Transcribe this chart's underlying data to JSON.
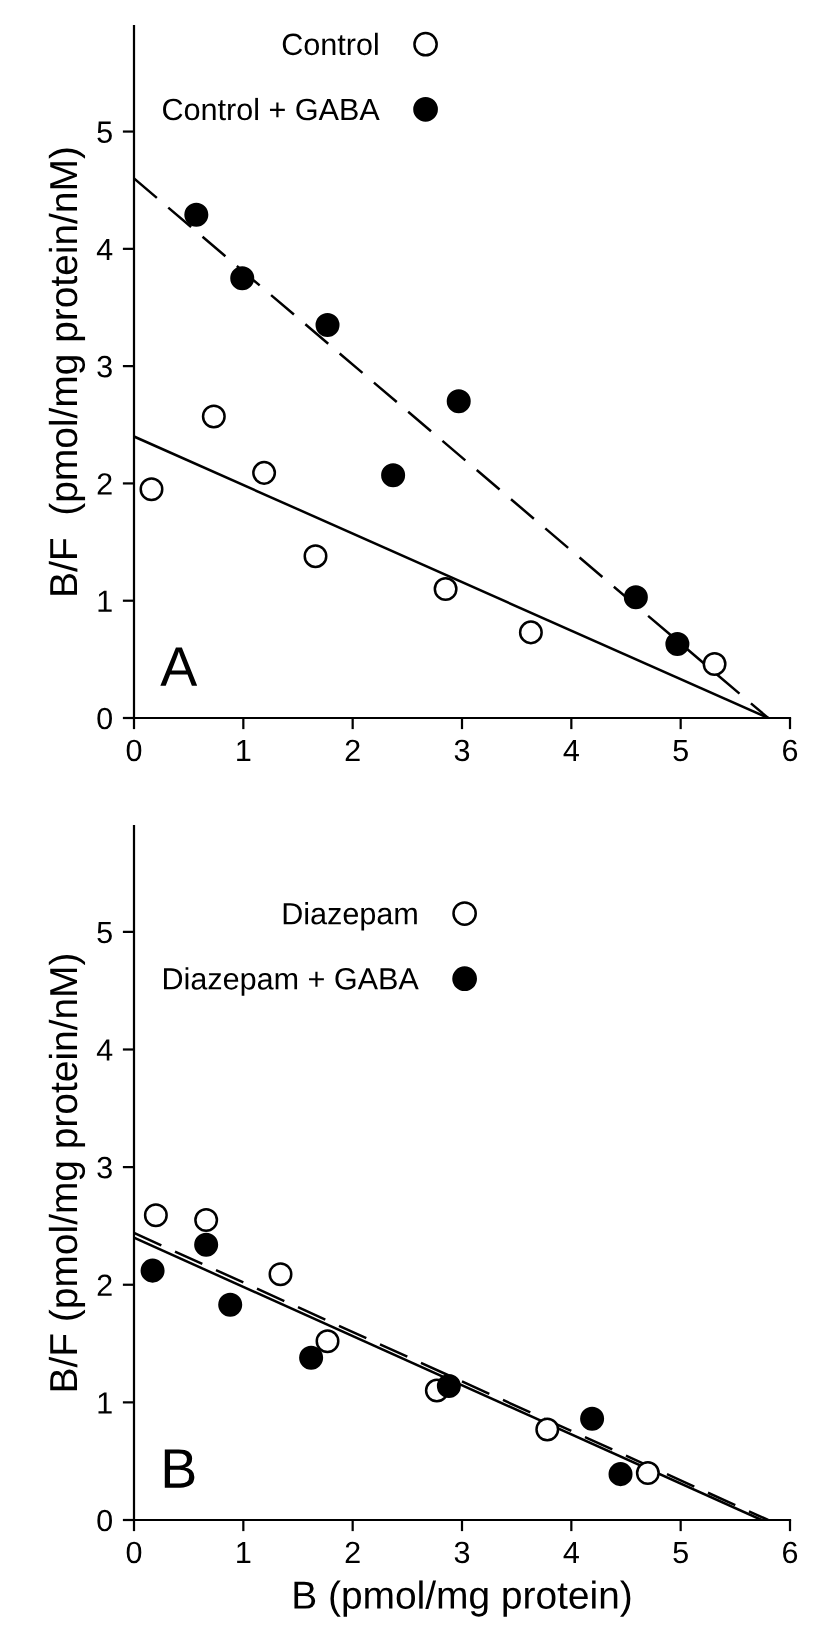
{
  "chart_data": [
    {
      "type": "scatter",
      "ylabel": "B/F  (pmol/mg protein/nM)",
      "xlim": [
        0,
        6
      ],
      "ylim": [
        0,
        5.9
      ],
      "xticks": [
        0,
        1,
        2,
        3,
        4,
        5,
        6
      ],
      "yticks": [
        0,
        1,
        2,
        3,
        4,
        5
      ],
      "grid": false,
      "legend": "top left",
      "marker": "circle",
      "annotations": [
        "A"
      ],
      "series": [
        {
          "name": "Control",
          "color": "#ffffff",
          "x": [
            0.16,
            0.73,
            1.19,
            1.66,
            2.85,
            3.63,
            5.31
          ],
          "values": [
            1.95,
            2.57,
            2.09,
            1.38,
            1.1,
            0.73,
            0.46
          ]
        },
        {
          "name": "Control + GABA",
          "color": "#000000",
          "x": [
            0.57,
            0.99,
            1.77,
            2.37,
            2.97,
            4.59,
            4.97
          ],
          "values": [
            4.29,
            3.75,
            3.35,
            2.07,
            2.7,
            1.03,
            0.63
          ]
        },
        {
          "type": "line",
          "color": "#000000",
          "line_style": "solid",
          "marker": "none",
          "x": [
            0,
            5.8
          ],
          "values": [
            2.4,
            0
          ]
        },
        {
          "type": "line",
          "color": "#000000",
          "line_style": "dashed",
          "marker": "none",
          "x": [
            0,
            5.8
          ],
          "values": [
            4.6,
            0
          ]
        }
      ]
    },
    {
      "type": "scatter",
      "xlabel": "B (pmol/mg protein)",
      "ylabel": "B/F (pmol/mg protein/nM)",
      "xlim": [
        0,
        6
      ],
      "ylim": [
        0,
        5.9
      ],
      "xticks": [
        0,
        1,
        2,
        3,
        4,
        5,
        6
      ],
      "yticks": [
        0,
        1,
        2,
        3,
        4,
        5
      ],
      "grid": false,
      "legend": "top left",
      "marker": "circle",
      "annotations": [
        "B"
      ],
      "series": [
        {
          "name": "Diazepam",
          "color": "#ffffff",
          "x": [
            0.2,
            0.66,
            1.34,
            1.77,
            2.77,
            3.78,
            4.7
          ],
          "values": [
            2.59,
            2.55,
            2.09,
            1.52,
            1.1,
            0.77,
            0.4
          ]
        },
        {
          "name": "Diazepam + GABA",
          "color": "#000000",
          "x": [
            0.17,
            0.66,
            0.88,
            1.62,
            2.88,
            4.19,
            4.45
          ],
          "values": [
            2.12,
            2.34,
            1.83,
            1.38,
            1.14,
            0.86,
            0.39
          ]
        },
        {
          "type": "line",
          "color": "#000000",
          "line_style": "solid",
          "marker": "none",
          "x": [
            0,
            5.74
          ],
          "values": [
            2.4,
            0
          ]
        },
        {
          "type": "line",
          "color": "#000000",
          "line_style": "dashed",
          "marker": "none",
          "x": [
            0,
            5.8
          ],
          "values": [
            2.44,
            0
          ]
        }
      ]
    }
  ]
}
